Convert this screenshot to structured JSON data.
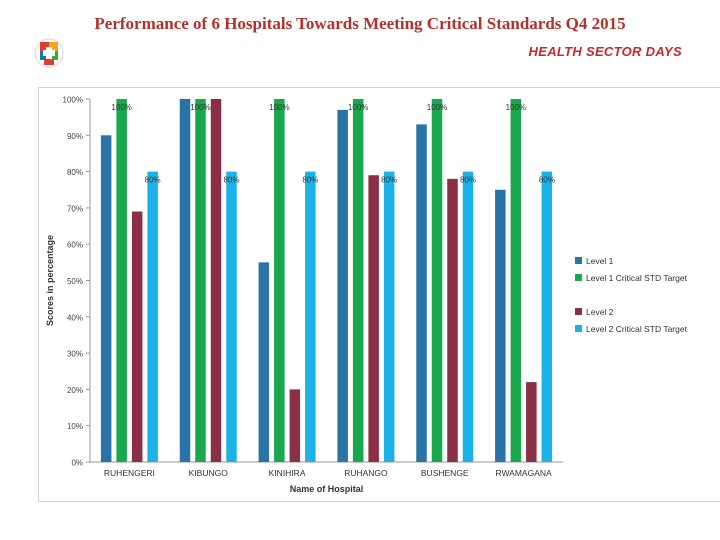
{
  "header": {
    "title": "Performance of 6 Hospitals Towards Meeting Critical Standards Q4 2015",
    "brand": "HEALTH SECTOR DAYS"
  },
  "colors": {
    "level1": "#2a73a6",
    "level1_target": "#19a84e",
    "level2": "#8a2f45",
    "level2_target": "#1ab2e8",
    "title": "#b5302a",
    "brand": "#c8272b"
  },
  "chart_data": {
    "type": "bar",
    "title": "Performance of 6 Hospitals Towards Meeting Critical Standards Q4 2015",
    "xlabel": "Name of Hospital",
    "ylabel": "Scores in percentage",
    "ylim": [
      0,
      100
    ],
    "yticks": [
      0,
      10,
      20,
      30,
      40,
      50,
      60,
      70,
      80,
      90,
      100
    ],
    "ytick_labels": [
      "0%",
      "10%",
      "20%",
      "30%",
      "40%",
      "50%",
      "60%",
      "70%",
      "80%",
      "90%",
      "100%"
    ],
    "grid": false,
    "legend_position": "right",
    "categories": [
      "RUHENGERI",
      "KIBUNGO",
      "KINIHIRA",
      "RUHANGO",
      "BUSHENGE",
      "RWAMAGANA"
    ],
    "series": [
      {
        "name": "Level 1",
        "values": [
          90,
          100,
          55,
          97,
          93,
          75
        ]
      },
      {
        "name": "Level 1 Critical STD Target",
        "values": [
          100,
          100,
          100,
          100,
          100,
          100
        ]
      },
      {
        "name": "Level 2",
        "values": [
          69,
          100,
          20,
          79,
          78,
          22
        ]
      },
      {
        "name": "Level 2 Critical STD Target",
        "values": [
          80,
          80,
          80,
          80,
          80,
          80
        ]
      }
    ],
    "data_labels": {
      "level1_target": "100%",
      "level2_target": "80%"
    }
  }
}
